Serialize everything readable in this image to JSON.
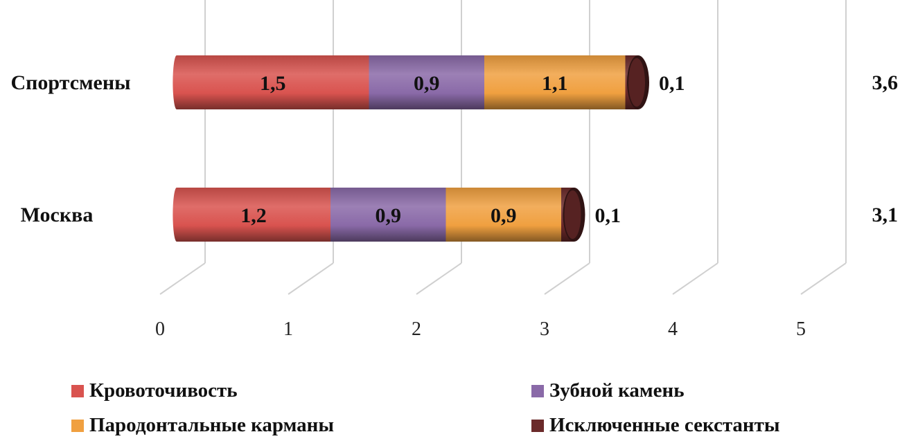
{
  "chart_data": {
    "type": "bar",
    "orientation": "horizontal",
    "stacked": true,
    "categories": [
      "Спортсмены",
      "Москва"
    ],
    "series": [
      {
        "name": "Кровоточивость",
        "values": [
          1.5,
          1.2
        ],
        "labels": [
          "1,5",
          "1,2"
        ],
        "color": "#d9534f"
      },
      {
        "name": "Зубной камень",
        "values": [
          0.9,
          0.9
        ],
        "labels": [
          "0,9",
          "0,9"
        ],
        "color": "#8a6aa8"
      },
      {
        "name": "Пародонтальные карманы",
        "values": [
          1.1,
          0.9
        ],
        "labels": [
          "1,1",
          "0,9"
        ],
        "color": "#f0a040"
      },
      {
        "name": "Исключенные секстанты",
        "values": [
          0.1,
          0.1
        ],
        "labels": [
          "0,1",
          "0,1"
        ],
        "color": "#6b2a2a"
      }
    ],
    "totals": [
      "3,6",
      "3,1"
    ],
    "xticks": [
      "0",
      "1",
      "2",
      "3",
      "4",
      "5"
    ],
    "xlim": [
      0,
      5
    ],
    "grid": true,
    "legend_position": "bottom"
  }
}
